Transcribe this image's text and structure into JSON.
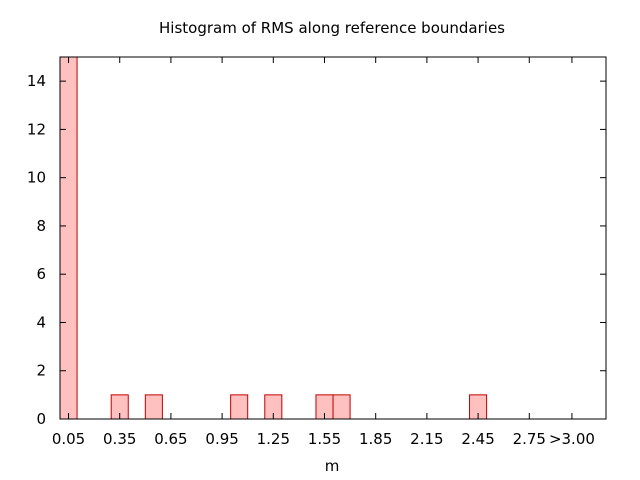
{
  "chart_data": {
    "type": "bar",
    "title": "Histogram of RMS along reference boundaries",
    "xlabel": "m",
    "ylabel": "",
    "ylim": [
      0,
      15
    ],
    "yticks": [
      0,
      2,
      4,
      6,
      8,
      10,
      12,
      14
    ],
    "xlim": [
      0.0,
      3.1
    ],
    "xticks": [
      {
        "value": 0.05,
        "label": "0.05"
      },
      {
        "value": 0.35,
        "label": "0.35"
      },
      {
        "value": 0.65,
        "label": "0.65"
      },
      {
        "value": 0.95,
        "label": "0.95"
      },
      {
        "value": 1.25,
        "label": "1.25"
      },
      {
        "value": 1.55,
        "label": "1.55"
      },
      {
        "value": 1.85,
        "label": "1.85"
      },
      {
        "value": 2.15,
        "label": "2.15"
      },
      {
        "value": 2.45,
        "label": "2.45"
      },
      {
        "value": 2.75,
        "label": "2.75"
      },
      {
        "value": 3.0,
        "label": ">3.00"
      }
    ],
    "bin_width": 0.1,
    "bins": [
      {
        "center": 0.05,
        "count": 15
      },
      {
        "center": 0.35,
        "count": 1
      },
      {
        "center": 0.55,
        "count": 1
      },
      {
        "center": 1.05,
        "count": 1
      },
      {
        "center": 1.25,
        "count": 1
      },
      {
        "center": 1.55,
        "count": 1
      },
      {
        "center": 1.65,
        "count": 1
      },
      {
        "center": 2.45,
        "count": 1
      }
    ],
    "bar_fill": "#ffc0c0",
    "bar_stroke": "#c00000",
    "grid": false
  }
}
